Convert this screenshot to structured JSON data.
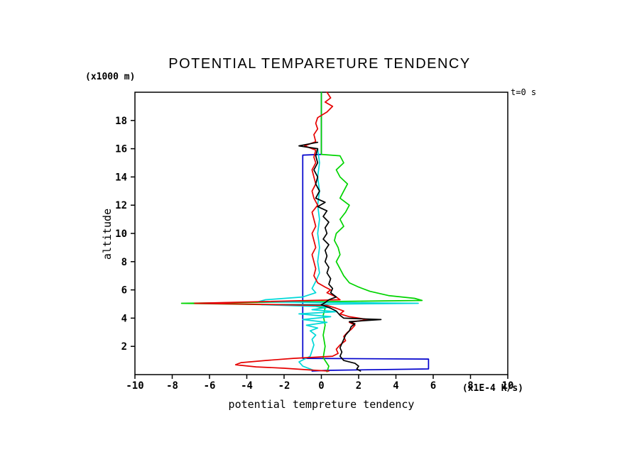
{
  "chart_data": {
    "type": "line",
    "title": "POTENTIAL TEMPARETURE TENDENCY",
    "xlabel": "potential tempreture tendency",
    "ylabel": "altitude",
    "x_unit": "(x1E-4 K/s)",
    "y_unit": "(x1000 m)",
    "time_label": "t=0 s",
    "xlim": [
      -10,
      10
    ],
    "ylim": [
      0,
      20
    ],
    "x_ticks": [
      -10,
      -8,
      -6,
      -4,
      -2,
      0,
      2,
      4,
      6,
      8,
      10
    ],
    "y_ticks": [
      2,
      4,
      6,
      8,
      10,
      12,
      14,
      16,
      18
    ],
    "grid": false,
    "legend": "none",
    "frame_color": "#000000",
    "series": [
      {
        "name": "blue",
        "color": "#0000cc",
        "points": [
          [
            0,
            20
          ],
          [
            0,
            15.6
          ],
          [
            -1.0,
            15.55
          ],
          [
            -1.0,
            1.15
          ],
          [
            5.75,
            1.1
          ],
          [
            5.75,
            0.4
          ],
          [
            0.3,
            0.3
          ],
          [
            -0.5,
            0.25
          ]
        ]
      },
      {
        "name": "green",
        "color": "#00d400",
        "points": [
          [
            0,
            20
          ],
          [
            0,
            15.6
          ],
          [
            1.0,
            15.5
          ],
          [
            1.2,
            15.0
          ],
          [
            0.8,
            14.5
          ],
          [
            1.0,
            14.0
          ],
          [
            1.4,
            13.5
          ],
          [
            1.2,
            13.0
          ],
          [
            1.0,
            12.5
          ],
          [
            1.5,
            12.0
          ],
          [
            1.3,
            11.5
          ],
          [
            1.0,
            11.0
          ],
          [
            1.2,
            10.5
          ],
          [
            0.8,
            10.0
          ],
          [
            0.7,
            9.5
          ],
          [
            0.9,
            9.0
          ],
          [
            1.0,
            8.5
          ],
          [
            0.8,
            8.0
          ],
          [
            1.0,
            7.5
          ],
          [
            1.2,
            7.0
          ],
          [
            1.5,
            6.5
          ],
          [
            2.0,
            6.2
          ],
          [
            2.6,
            5.9
          ],
          [
            3.6,
            5.6
          ],
          [
            5.0,
            5.4
          ],
          [
            5.4,
            5.25
          ],
          [
            -7.5,
            5.05
          ],
          [
            -0.5,
            4.9
          ],
          [
            0.2,
            4.7
          ],
          [
            0.1,
            4.2
          ],
          [
            0.2,
            3.5
          ],
          [
            0.1,
            2.8
          ],
          [
            0.2,
            2.0
          ],
          [
            0.1,
            1.2
          ],
          [
            0.4,
            0.6
          ],
          [
            0.3,
            0.2
          ]
        ]
      },
      {
        "name": "cyan",
        "color": "#00d8d8",
        "points": [
          [
            -0.2,
            16.0
          ],
          [
            -0.1,
            15.0
          ],
          [
            -0.2,
            14.0
          ],
          [
            -0.1,
            13.0
          ],
          [
            -0.2,
            12.0
          ],
          [
            -0.1,
            11.0
          ],
          [
            -0.2,
            10.0
          ],
          [
            -0.1,
            9.0
          ],
          [
            -0.2,
            8.0
          ],
          [
            -0.1,
            7.2
          ],
          [
            -0.3,
            6.6
          ],
          [
            -0.5,
            6.1
          ],
          [
            -0.3,
            5.8
          ],
          [
            -1.0,
            5.5
          ],
          [
            -3.0,
            5.3
          ],
          [
            -3.4,
            5.15
          ],
          [
            5.2,
            5.05
          ],
          [
            -3.2,
            4.95
          ],
          [
            0.5,
            4.8
          ],
          [
            -0.5,
            4.6
          ],
          [
            0.8,
            4.45
          ],
          [
            -1.2,
            4.3
          ],
          [
            0.5,
            4.1
          ],
          [
            -1.0,
            3.9
          ],
          [
            0.3,
            3.7
          ],
          [
            -0.8,
            3.5
          ],
          [
            -0.2,
            3.3
          ],
          [
            -0.6,
            3.1
          ],
          [
            -0.3,
            2.8
          ],
          [
            -0.5,
            2.5
          ],
          [
            -0.4,
            2.1
          ],
          [
            -0.5,
            1.7
          ],
          [
            -0.6,
            1.3
          ],
          [
            -1.2,
            0.9
          ],
          [
            -1.0,
            0.6
          ],
          [
            -0.4,
            0.3
          ]
        ]
      },
      {
        "name": "red",
        "color": "#e60000",
        "points": [
          [
            0.3,
            20
          ],
          [
            0.5,
            19.6
          ],
          [
            0.2,
            19.3
          ],
          [
            0.6,
            19.0
          ],
          [
            0.3,
            18.6
          ],
          [
            -0.2,
            18.2
          ],
          [
            -0.3,
            17.8
          ],
          [
            -0.2,
            17.4
          ],
          [
            -0.4,
            17.0
          ],
          [
            -0.3,
            16.5
          ],
          [
            -0.9,
            16.2
          ],
          [
            -0.3,
            15.9
          ],
          [
            -0.4,
            15.4
          ],
          [
            -0.3,
            15.0
          ],
          [
            -0.5,
            14.5
          ],
          [
            -0.4,
            14.0
          ],
          [
            -0.3,
            13.5
          ],
          [
            -0.5,
            13.0
          ],
          [
            -0.4,
            12.5
          ],
          [
            -0.2,
            12.0
          ],
          [
            -0.5,
            11.5
          ],
          [
            -0.4,
            11.0
          ],
          [
            -0.3,
            10.5
          ],
          [
            -0.5,
            10.0
          ],
          [
            -0.4,
            9.5
          ],
          [
            -0.3,
            9.0
          ],
          [
            -0.5,
            8.5
          ],
          [
            -0.4,
            8.0
          ],
          [
            -0.3,
            7.5
          ],
          [
            -0.4,
            7.0
          ],
          [
            -0.2,
            6.5
          ],
          [
            0.2,
            6.2
          ],
          [
            0.5,
            6.0
          ],
          [
            0.3,
            5.8
          ],
          [
            0.8,
            5.5
          ],
          [
            1.0,
            5.3
          ],
          [
            -6.8,
            5.05
          ],
          [
            0.3,
            4.9
          ],
          [
            0.8,
            4.7
          ],
          [
            1.2,
            4.5
          ],
          [
            1.0,
            4.3
          ],
          [
            1.5,
            4.1
          ],
          [
            2.5,
            3.9
          ],
          [
            1.5,
            3.7
          ],
          [
            1.8,
            3.5
          ],
          [
            1.6,
            3.2
          ],
          [
            1.4,
            3.0
          ],
          [
            1.2,
            2.7
          ],
          [
            1.3,
            2.4
          ],
          [
            1.0,
            2.1
          ],
          [
            0.8,
            1.8
          ],
          [
            0.9,
            1.5
          ],
          [
            0.6,
            1.3
          ],
          [
            -1.5,
            1.15
          ],
          [
            -3.0,
            1.0
          ],
          [
            -4.3,
            0.85
          ],
          [
            -4.6,
            0.7
          ],
          [
            -3.5,
            0.55
          ],
          [
            -2.0,
            0.45
          ],
          [
            -0.5,
            0.32
          ],
          [
            0.4,
            0.25
          ]
        ]
      },
      {
        "name": "black",
        "color": "#000000",
        "points": [
          [
            -0.2,
            16.45
          ],
          [
            -1.2,
            16.2
          ],
          [
            -0.2,
            16.0
          ],
          [
            -0.3,
            15.5
          ],
          [
            -0.2,
            15.0
          ],
          [
            -0.4,
            14.5
          ],
          [
            -0.2,
            14.0
          ],
          [
            -0.3,
            13.5
          ],
          [
            -0.1,
            13.0
          ],
          [
            -0.3,
            12.5
          ],
          [
            0.2,
            12.2
          ],
          [
            -0.2,
            11.9
          ],
          [
            0.3,
            11.6
          ],
          [
            0.1,
            11.2
          ],
          [
            0.4,
            10.8
          ],
          [
            0.2,
            10.4
          ],
          [
            0.3,
            10.0
          ],
          [
            0.1,
            9.6
          ],
          [
            0.4,
            9.2
          ],
          [
            0.2,
            8.8
          ],
          [
            0.3,
            8.4
          ],
          [
            0.2,
            8.0
          ],
          [
            0.4,
            7.6
          ],
          [
            0.3,
            7.2
          ],
          [
            0.5,
            6.8
          ],
          [
            0.4,
            6.4
          ],
          [
            0.6,
            6.1
          ],
          [
            0.5,
            5.8
          ],
          [
            0.8,
            5.5
          ],
          [
            0.4,
            5.3
          ],
          [
            0.2,
            5.1
          ],
          [
            0.0,
            4.95
          ],
          [
            0.5,
            4.7
          ],
          [
            0.8,
            4.5
          ],
          [
            1.0,
            4.2
          ],
          [
            1.2,
            4.0
          ],
          [
            3.2,
            3.9
          ],
          [
            1.5,
            3.75
          ],
          [
            1.8,
            3.6
          ],
          [
            1.6,
            3.4
          ],
          [
            1.5,
            3.1
          ],
          [
            1.3,
            2.8
          ],
          [
            1.2,
            2.5
          ],
          [
            1.1,
            2.2
          ],
          [
            1.0,
            1.9
          ],
          [
            1.1,
            1.6
          ],
          [
            1.0,
            1.3
          ],
          [
            1.2,
            1.0
          ],
          [
            1.8,
            0.8
          ],
          [
            2.0,
            0.6
          ],
          [
            1.9,
            0.4
          ],
          [
            2.1,
            0.25
          ]
        ]
      }
    ]
  }
}
